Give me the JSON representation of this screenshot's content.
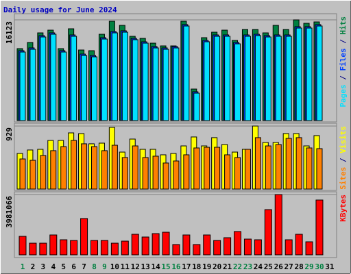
{
  "chart_data": {
    "type": "bar",
    "title": "Daily usage for June 2024",
    "title_color": "#0000c0",
    "categories": [
      "1",
      "2",
      "3",
      "4",
      "5",
      "6",
      "7",
      "8",
      "9",
      "10",
      "11",
      "12",
      "13",
      "14",
      "15",
      "16",
      "17",
      "18",
      "19",
      "20",
      "21",
      "22",
      "23",
      "24",
      "25",
      "26",
      "27",
      "28",
      "29",
      "30",
      "31"
    ],
    "x_label_colors": [
      "#008040",
      "#000000",
      "#000000",
      "#000000",
      "#000000",
      "#000000",
      "#000000",
      "#008040",
      "#008040",
      "#000000",
      "#000000",
      "#000000",
      "#000000",
      "#000000",
      "#008040",
      "#008040",
      "#000000",
      "#000000",
      "#000000",
      "#000000",
      "#000000",
      "#008040",
      "#008040",
      "#000000",
      "#000000",
      "#000000",
      "#000000",
      "#000000",
      "#008040",
      "#008040",
      "#000000"
    ],
    "legend_separator": " / ",
    "panels": [
      {
        "ylim": [
          0,
          16123
        ],
        "yticks": [
          16123
        ],
        "series": [
          {
            "name": "Hits",
            "color": "#008040",
            "values": [
              11517,
              12504,
              14039,
              14478,
              11517,
              14697,
              11297,
              11188,
              13820,
              15904,
              15246,
              13491,
              13162,
              12394,
              11955,
              11955,
              15904,
              5045,
              13271,
              14149,
              14478,
              12833,
              14588,
              14588,
              14039,
              15246,
              14588,
              16123,
              15575,
              15794,
              0
            ]
          },
          {
            "name": "Files",
            "color": "#0040ff",
            "values": [
              11190,
              11630,
              13600,
              14040,
              11190,
              13710,
              10640,
              10420,
              13270,
              14260,
              14370,
              13160,
              12610,
              11850,
              11630,
              11850,
              15360,
              4610,
              12830,
              13710,
              13710,
              12500,
              13710,
              13820,
              13600,
              13710,
              13710,
              15030,
              15030,
              15360,
              0
            ]
          },
          {
            "name": "Pages",
            "color": "#00e0ff",
            "values": [
              10970,
              11408,
              13383,
              13822,
              10970,
              13493,
              10421,
              10202,
              13054,
              14042,
              14151,
              12945,
              12396,
              11628,
              11408,
              11628,
              15138,
              4388,
              12615,
              13493,
              13493,
              12286,
              13493,
              13602,
              13383,
              13493,
              13493,
              14809,
              14809,
              15138,
              0
            ]
          }
        ]
      },
      {
        "ylim": [
          0,
          929
        ],
        "yticks": [
          929
        ],
        "series": [
          {
            "name": "Visits",
            "color": "#ffff00",
            "values": [
              525,
              576,
              586,
              717,
              717,
              828,
              818,
              667,
              677,
              909,
              545,
              737,
              586,
              586,
              505,
              525,
              636,
              768,
              636,
              758,
              657,
              545,
              586,
              929,
              687,
              687,
              818,
              818,
              636,
              788,
              0
            ]
          },
          {
            "name": "Sites",
            "color": "#ff8000",
            "values": [
              444,
              424,
              495,
              566,
              626,
              717,
              667,
              626,
              566,
              646,
              465,
              636,
              465,
              485,
              384,
              414,
              505,
              606,
              616,
              616,
              505,
              465,
              586,
              758,
              636,
              657,
              747,
              758,
              606,
              596,
              0
            ]
          }
        ]
      },
      {
        "ylim": [
          0,
          3981066
        ],
        "yticks": [
          3981066
        ],
        "series": [
          {
            "name": "KBytes",
            "color": "#ff0000",
            "values": [
              1221000,
              769000,
              769000,
              1312000,
              995000,
              950000,
              2398000,
              950000,
              950000,
              769000,
              905000,
              1357000,
              1176000,
              1402000,
              1493000,
              679000,
              1312000,
              679000,
              1312000,
              950000,
              1131000,
              1538000,
              1040000,
              995000,
              2986000,
              3981066,
              995000,
              1357000,
              860000,
              3619000,
              0
            ]
          }
        ]
      }
    ]
  }
}
